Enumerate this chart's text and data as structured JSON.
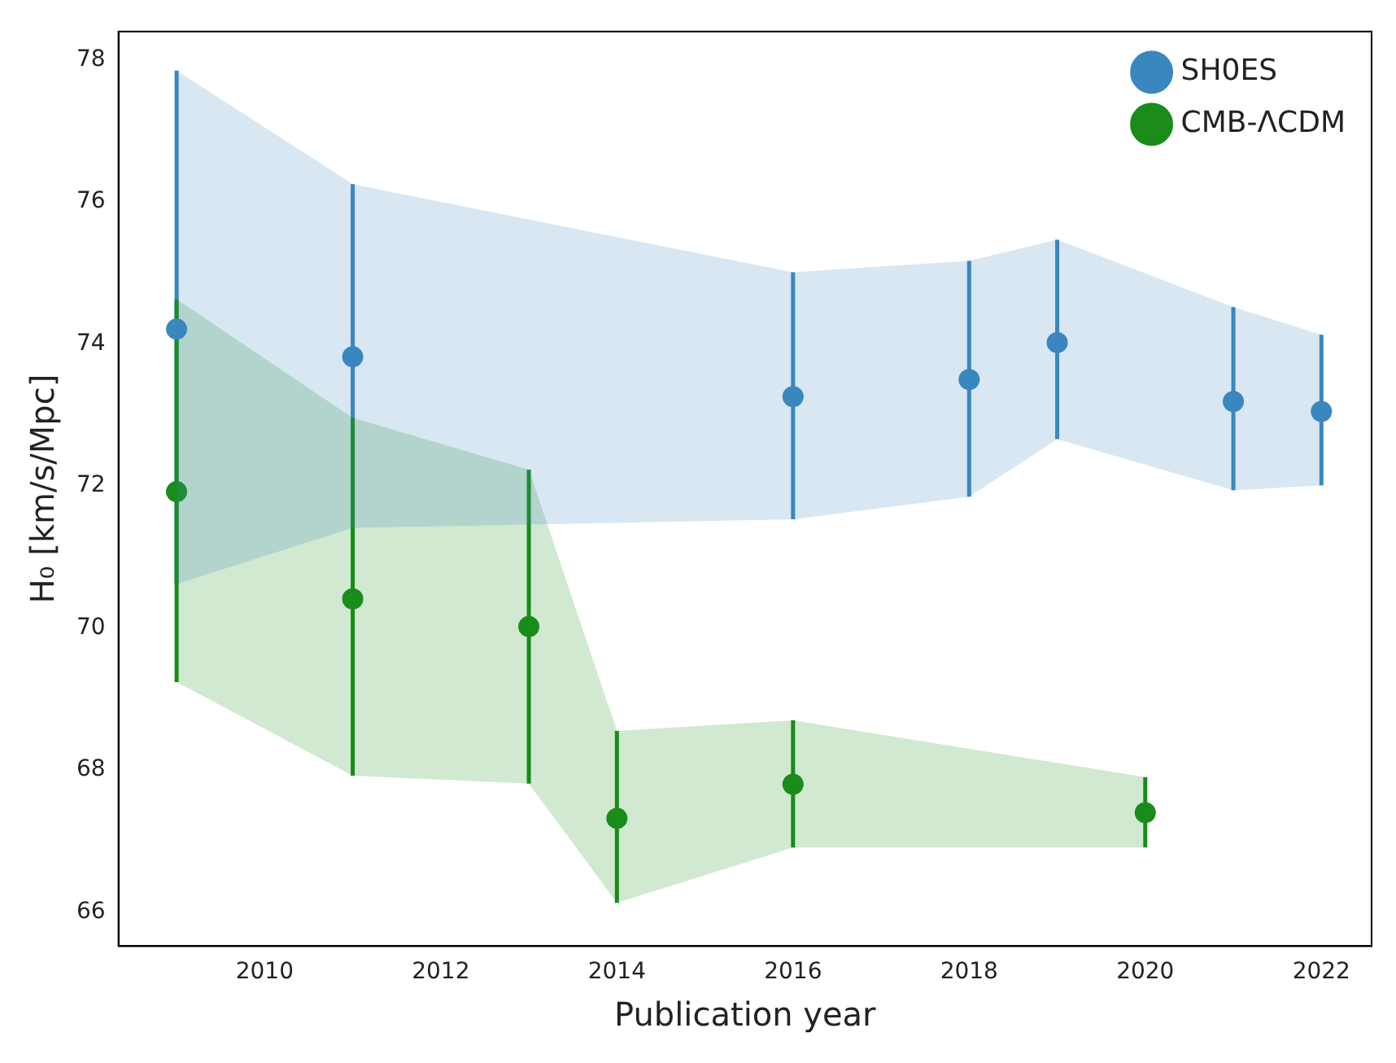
{
  "chart_data": {
    "type": "scatter",
    "xlabel": "Publication year",
    "ylabel": "H₀ [km/s/Mpc]",
    "xlim": [
      2008.34,
      2022.57
    ],
    "xticks": [
      2010,
      2012,
      2014,
      2016,
      2018,
      2020,
      2022
    ],
    "ylim": [
      65.52,
      78.4
    ],
    "yticks": [
      66,
      68,
      70,
      72,
      74,
      76,
      78
    ],
    "grid": false,
    "legend": "top right",
    "marker": "circle",
    "series": [
      {
        "name": "SH0ES",
        "color": "#3a87c0",
        "x": [
          2009,
          2011,
          2016,
          2018,
          2019,
          2021,
          2022
        ],
        "values": [
          74.21,
          73.82,
          73.26,
          73.5,
          74.02,
          73.19,
          73.05
        ],
        "errors": [
          [
            70.62,
            77.85
          ],
          [
            71.41,
            76.25
          ],
          [
            71.53,
            75.01
          ],
          [
            71.85,
            75.17
          ],
          [
            72.66,
            75.47
          ],
          [
            71.94,
            74.52
          ],
          [
            72.01,
            74.13
          ]
        ],
        "lower": [
          70.62,
          71.41,
          71.53,
          71.85,
          72.66,
          71.94,
          72.01
        ],
        "upper": [
          77.85,
          76.25,
          75.01,
          75.17,
          75.47,
          74.52,
          74.13
        ]
      },
      {
        "name": "CMB-ΛCDM",
        "color": "#1a8c1a",
        "x": [
          2009,
          2011,
          2013,
          2014,
          2016,
          2020
        ],
        "values": [
          71.92,
          70.41,
          70.02,
          67.32,
          67.8,
          67.4
        ],
        "errors": [
          [
            69.24,
            74.63
          ],
          [
            67.92,
            72.96
          ],
          [
            67.81,
            72.23
          ],
          [
            66.13,
            68.55
          ],
          [
            66.91,
            68.7
          ],
          [
            66.91,
            67.9
          ]
        ],
        "lower": [
          69.24,
          67.92,
          67.81,
          66.13,
          66.91,
          66.91
        ],
        "upper": [
          74.63,
          72.96,
          72.23,
          68.55,
          68.7,
          67.9
        ]
      }
    ]
  }
}
